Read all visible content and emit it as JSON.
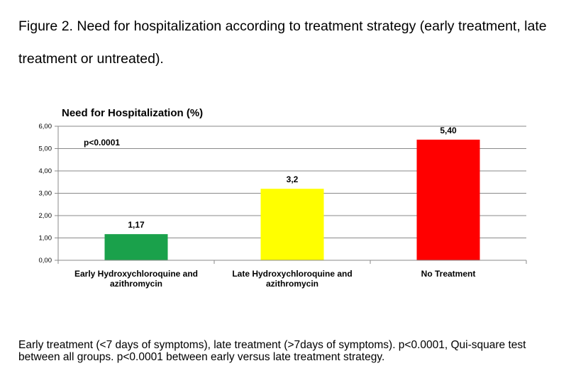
{
  "figure": {
    "title": "Figure 2. Need for hospitalization according to treatment strategy (early treatment, late treatment or untreated).",
    "caption": "Early treatment (<7 days of symptoms), late treatment (>7days of symptoms). p<0.0001, Qui-square test between all groups. p<0.0001 between early versus late treatment strategy."
  },
  "chart_data": {
    "type": "bar",
    "title": "Need for Hospitalization (%)",
    "categories": [
      [
        "Early Hydroxychloroquine and",
        "azithromycin"
      ],
      [
        "Late Hydroxychloroquine and",
        "azithromycin"
      ],
      [
        "No Treatment"
      ]
    ],
    "values": [
      1.17,
      3.2,
      5.4
    ],
    "data_labels": [
      "1,17",
      "3,2",
      "5,40"
    ],
    "colors": [
      "#1aa14b",
      "#ffff00",
      "#ff0000"
    ],
    "ylim": [
      0,
      6
    ],
    "yticks": [
      "0,00",
      "1,00",
      "2,00",
      "3,00",
      "4,00",
      "5,00",
      "6,00"
    ],
    "grid": true,
    "annotation": "p<0.0001"
  }
}
